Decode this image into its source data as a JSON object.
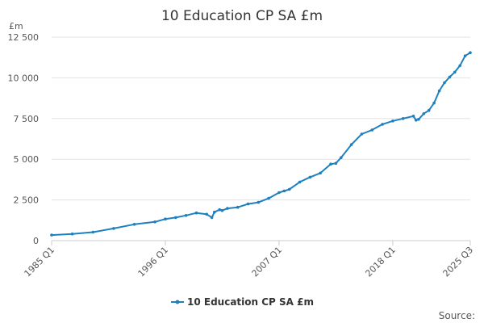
{
  "chart_data": {
    "type": "line",
    "title": "10 Education CP SA £m",
    "ylabel": "£m",
    "xlabel": "",
    "ylim": [
      0,
      12500
    ],
    "yticks": [
      "0",
      "2 500",
      "5 000",
      "7 500",
      "10 000",
      "12 500"
    ],
    "ytick_values": [
      0,
      2500,
      5000,
      7500,
      10000,
      12500
    ],
    "xtick_labels": [
      "1985 Q1",
      "1996 Q1",
      "2007 Q1",
      "2018 Q1",
      "2025 Q3"
    ],
    "x_range": [
      "1985 Q1",
      "2025 Q3"
    ],
    "grid": true,
    "legend_position": "bottom",
    "source_label": "Source:",
    "series": [
      {
        "name": "10 Education CP SA £m",
        "color": "#1f80c0",
        "x": [
          "1985 Q1",
          "1987 Q1",
          "1989 Q1",
          "1991 Q1",
          "1993 Q1",
          "1995 Q1",
          "1996 Q1",
          "1997 Q1",
          "1998 Q1",
          "1999 Q1",
          "2000 Q1",
          "2000 Q3",
          "2000 Q4",
          "2001 Q2",
          "2001 Q3",
          "2002 Q1",
          "2003 Q1",
          "2004 Q1",
          "2005 Q1",
          "2006 Q1",
          "2007 Q1",
          "2007 Q3",
          "2008 Q1",
          "2009 Q1",
          "2010 Q1",
          "2011 Q1",
          "2012 Q1",
          "2012 Q3",
          "2013 Q1",
          "2014 Q1",
          "2015 Q1",
          "2016 Q1",
          "2017 Q1",
          "2018 Q1",
          "2019 Q1",
          "2020 Q1",
          "2020 Q2",
          "2020 Q3",
          "2021 Q1",
          "2021 Q3",
          "2022 Q1",
          "2022 Q3",
          "2023 Q1",
          "2023 Q3",
          "2024 Q1",
          "2024 Q3",
          "2025 Q1",
          "2025 Q3"
        ],
        "values": [
          340,
          410,
          520,
          750,
          1000,
          1150,
          1330,
          1420,
          1550,
          1700,
          1620,
          1420,
          1750,
          1900,
          1850,
          1980,
          2050,
          2250,
          2350,
          2600,
          2950,
          3050,
          3150,
          3600,
          3900,
          4150,
          4700,
          4750,
          5100,
          5900,
          6550,
          6800,
          7150,
          7350,
          7500,
          7650,
          7400,
          7450,
          7800,
          8000,
          8450,
          9200,
          9700,
          10050,
          10350,
          10750,
          11350,
          11550
        ]
      }
    ]
  }
}
